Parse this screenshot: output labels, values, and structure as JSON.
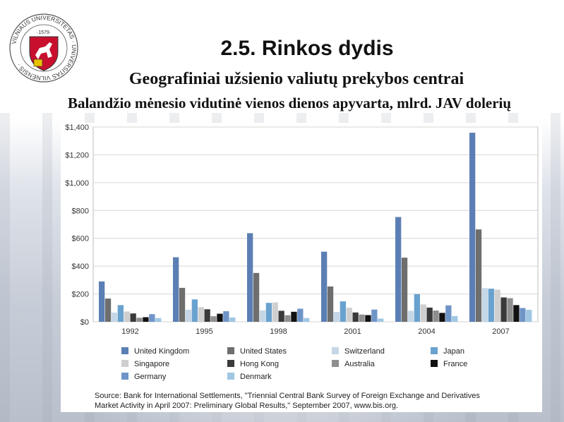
{
  "header": {
    "title": "2.5. Rinkos dydis",
    "subtitle": "Geografiniai užsienio valiutų prekybos centrai",
    "subtitle2": "Balandžio mėnesio vidutinė vienos dienos apyvarta, mlrd. JAV dolerių"
  },
  "logo": {
    "ring_text": "VILNIAUS UNIVERSITETAS · VILNIENSIS · UNIVERSITAS",
    "year": "1579"
  },
  "source": {
    "line1": "Source: Bank for International Settlements, \"Triennial Central Bank Survey of Foreign Exchange and Derivatives",
    "line2": "Market Activity in April 2007: Preliminary Global Results,\" September 2007, www.bis.org."
  },
  "chart_data": {
    "type": "bar",
    "categories": [
      "1992",
      "1995",
      "1998",
      "2001",
      "2004",
      "2007"
    ],
    "ylim": [
      0,
      1400
    ],
    "yticks": [
      0,
      200,
      400,
      600,
      800,
      1000,
      1200,
      1400
    ],
    "ytick_labels": [
      "$0",
      "$200",
      "$400",
      "$600",
      "$800",
      "$1,000",
      "$1,200",
      "$1,400"
    ],
    "grid": true,
    "legend_position": "bottom",
    "series": [
      {
        "name": "United Kingdom",
        "color": "#5b7fb4",
        "values": [
          290,
          464,
          637,
          504,
          753,
          1359
        ]
      },
      {
        "name": "United States",
        "color": "#6e6e6e",
        "values": [
          167,
          244,
          351,
          254,
          461,
          664
        ]
      },
      {
        "name": "Switzerland",
        "color": "#c5d7e6",
        "values": [
          66,
          87,
          82,
          71,
          79,
          242
        ]
      },
      {
        "name": "Japan",
        "color": "#6aa2cf",
        "values": [
          120,
          161,
          136,
          147,
          199,
          238
        ]
      },
      {
        "name": "Singapore",
        "color": "#cfcfcf",
        "values": [
          74,
          105,
          139,
          101,
          125,
          231
        ]
      },
      {
        "name": "Hong Kong",
        "color": "#3a3a3a",
        "values": [
          60,
          90,
          79,
          67,
          102,
          175
        ]
      },
      {
        "name": "Australia",
        "color": "#8f8f8f",
        "values": [
          29,
          40,
          47,
          52,
          81,
          170
        ]
      },
      {
        "name": "France",
        "color": "#111111",
        "values": [
          33,
          58,
          72,
          48,
          64,
          120
        ]
      },
      {
        "name": "Germany",
        "color": "#6f95c8",
        "values": [
          55,
          76,
          94,
          88,
          118,
          99
        ]
      },
      {
        "name": "Denmark",
        "color": "#9fc7e3",
        "values": [
          27,
          31,
          27,
          23,
          41,
          86
        ]
      }
    ]
  }
}
